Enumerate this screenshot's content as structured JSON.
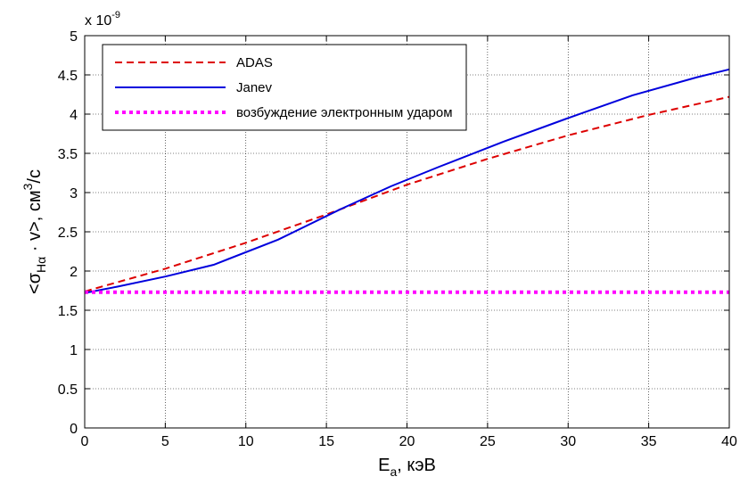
{
  "chart_data": {
    "type": "line",
    "xlabel_main": "E",
    "xlabel_sub": "a",
    "xlabel_rest": ", кэВ",
    "ylabel_pre": "<σ",
    "ylabel_sub": "Hα",
    "ylabel_mid": " · v>, см",
    "ylabel_sup": "3",
    "ylabel_post": "/с",
    "y_multiplier_base": "x 10",
    "y_multiplier_exp": "-9",
    "xlim": [
      0,
      40
    ],
    "ylim": [
      0,
      5
    ],
    "xticks": [
      "0",
      "5",
      "10",
      "15",
      "20",
      "25",
      "30",
      "35",
      "40"
    ],
    "yticks": [
      "0",
      "0.5",
      "1",
      "1.5",
      "2",
      "2.5",
      "3",
      "3.5",
      "4",
      "4.5",
      "5"
    ],
    "grid": true,
    "legend_position": "top-left",
    "series": [
      {
        "name": "ADAS",
        "color": "#dd0000",
        "style": "dashed",
        "x": [
          0,
          5,
          10,
          15,
          20,
          25,
          30,
          35,
          40
        ],
        "y": [
          1.74,
          2.03,
          2.36,
          2.72,
          3.1,
          3.43,
          3.73,
          3.99,
          4.22
        ]
      },
      {
        "name": "Janev",
        "color": "#0000dd",
        "style": "solid",
        "x": [
          0,
          2,
          5,
          8,
          12,
          16,
          19,
          22,
          26,
          30,
          34,
          38,
          40
        ],
        "y": [
          1.72,
          1.8,
          1.93,
          2.08,
          2.4,
          2.8,
          3.08,
          3.33,
          3.65,
          3.95,
          4.24,
          4.47,
          4.57
        ]
      },
      {
        "name": "возбуждение электронным ударом",
        "color": "#ff00ff",
        "style": "dotted",
        "x": [
          0,
          40
        ],
        "y": [
          1.73,
          1.73
        ]
      }
    ]
  }
}
